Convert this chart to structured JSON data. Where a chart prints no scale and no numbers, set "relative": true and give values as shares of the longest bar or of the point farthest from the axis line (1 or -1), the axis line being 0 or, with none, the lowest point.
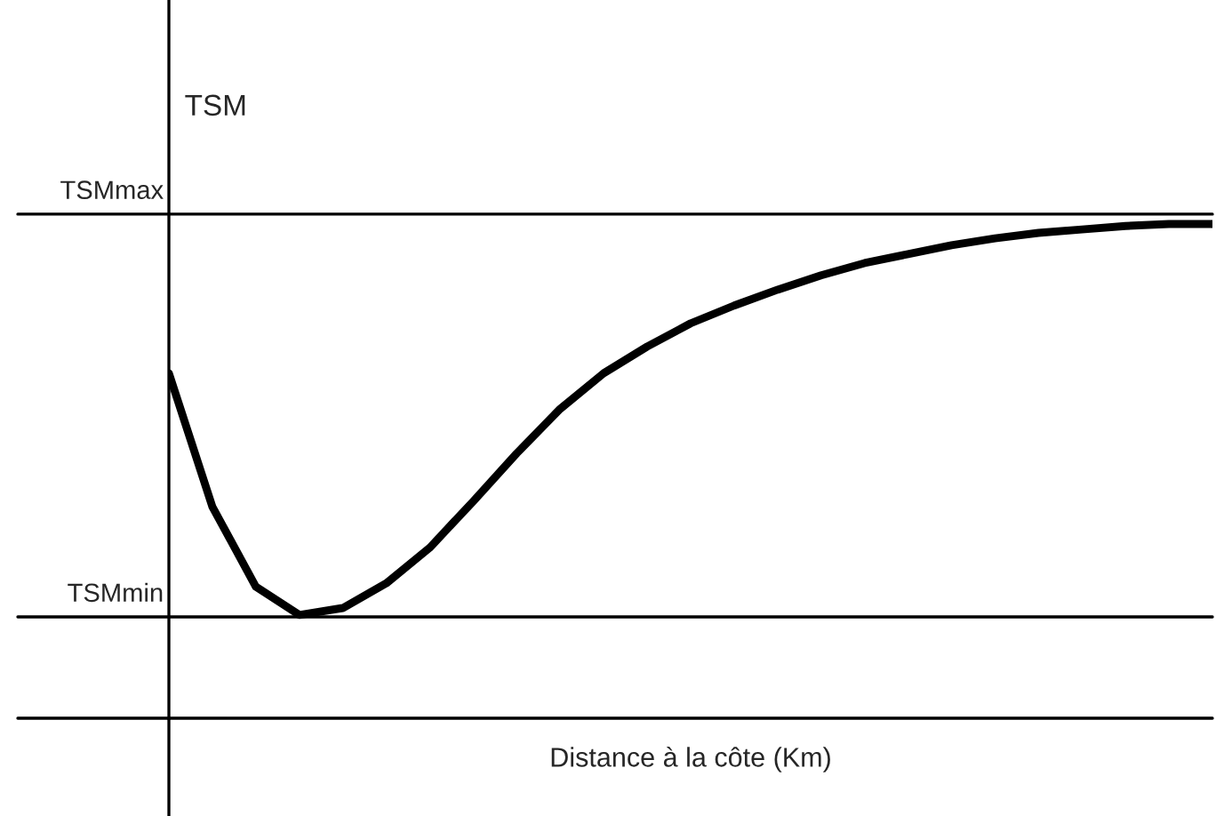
{
  "chart_data": {
    "type": "line",
    "relative": true,
    "ylabel": "TSM",
    "xlabel": "Distance à la côte (Km)",
    "categories": [
      null,
      null,
      null,
      null,
      null,
      null,
      null,
      null,
      null,
      null,
      null,
      null,
      null,
      null,
      null,
      null,
      null,
      null,
      null,
      null,
      null,
      null,
      null,
      null,
      null
    ],
    "series": [
      {
        "color": "#000000",
        "values": [
          0.698,
          0.428,
          0.266,
          0.209,
          0.223,
          0.273,
          0.345,
          0.439,
          0.536,
          0.626,
          0.698,
          0.752,
          0.799,
          0.835,
          0.867,
          0.896,
          0.921,
          0.939,
          0.957,
          0.971,
          0.982,
          0.989,
          0.996,
          1,
          1
        ]
      }
    ],
    "ref_lines": [
      {
        "axis": "y",
        "value": 1.02,
        "label": "TSMmax",
        "color": "#000000"
      },
      {
        "axis": "y",
        "value": 0.205,
        "label": "TSMmin",
        "color": "#000000"
      }
    ],
    "grid": false,
    "legend": false,
    "marker": "none",
    "line_style": "solid"
  }
}
